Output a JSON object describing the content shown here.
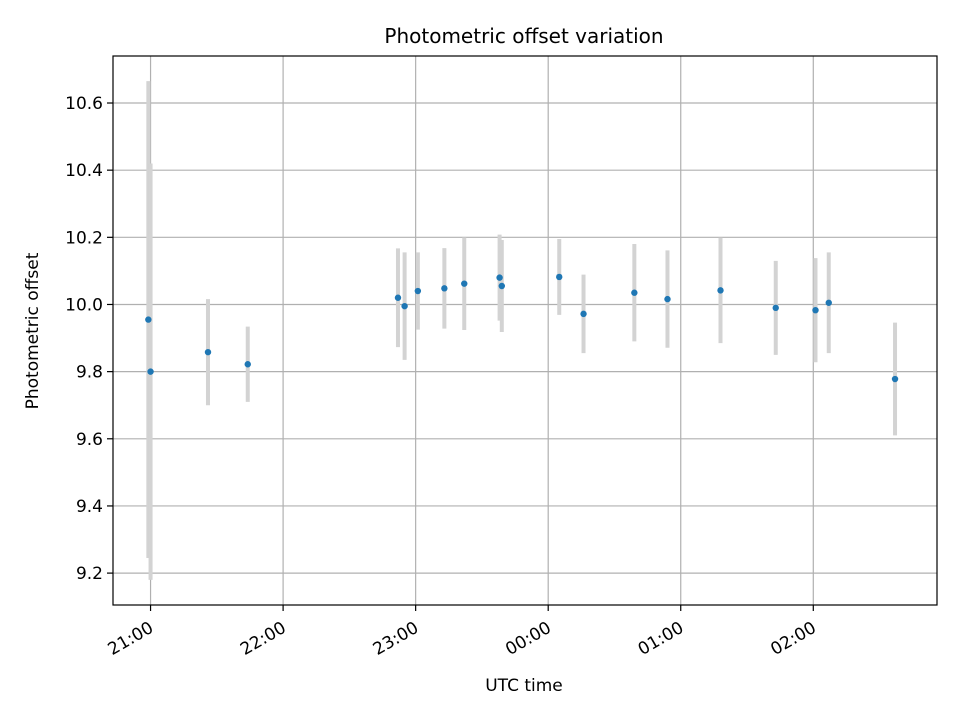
{
  "chart_data": {
    "type": "scatter",
    "title": "Photometric offset variation",
    "xlabel": "UTC time",
    "ylabel": "Photometric offset",
    "x_ticks": [
      "21:00",
      "22:00",
      "23:00",
      "00:00",
      "01:00",
      "02:00"
    ],
    "y_ticks": [
      "9.2",
      "9.4",
      "9.6",
      "9.8",
      "10.0",
      "10.2",
      "10.4",
      "10.6"
    ],
    "xlim": [
      "20:43",
      "02:56"
    ],
    "ylim": [
      9.105,
      10.74
    ],
    "grid": true,
    "point_color": "#1f77b4",
    "errorbar_color": "#d3d3d3",
    "points": [
      {
        "t": "20:59",
        "y": 9.955,
        "err": 0.71
      },
      {
        "t": "21:00",
        "y": 9.8,
        "err": 0.62
      },
      {
        "t": "21:26",
        "y": 9.858,
        "err": 0.158
      },
      {
        "t": "21:44",
        "y": 9.822,
        "err": 0.112
      },
      {
        "t": "22:52",
        "y": 10.02,
        "err": 0.147
      },
      {
        "t": "22:55",
        "y": 9.995,
        "err": 0.16
      },
      {
        "t": "23:01",
        "y": 10.04,
        "err": 0.115
      },
      {
        "t": "23:13",
        "y": 10.048,
        "err": 0.12
      },
      {
        "t": "23:22",
        "y": 10.062,
        "err": 0.138
      },
      {
        "t": "23:38",
        "y": 10.08,
        "err": 0.128
      },
      {
        "t": "23:39",
        "y": 10.055,
        "err": 0.137
      },
      {
        "t": "00:05",
        "y": 10.082,
        "err": 0.113
      },
      {
        "t": "00:16",
        "y": 9.972,
        "err": 0.117
      },
      {
        "t": "00:39",
        "y": 10.035,
        "err": 0.145
      },
      {
        "t": "00:54",
        "y": 10.016,
        "err": 0.145
      },
      {
        "t": "01:18",
        "y": 10.042,
        "err": 0.157
      },
      {
        "t": "01:43",
        "y": 9.99,
        "err": 0.14
      },
      {
        "t": "02:01",
        "y": 9.983,
        "err": 0.155
      },
      {
        "t": "02:07",
        "y": 10.005,
        "err": 0.15
      },
      {
        "t": "02:37",
        "y": 9.778,
        "err": 0.168
      }
    ]
  }
}
